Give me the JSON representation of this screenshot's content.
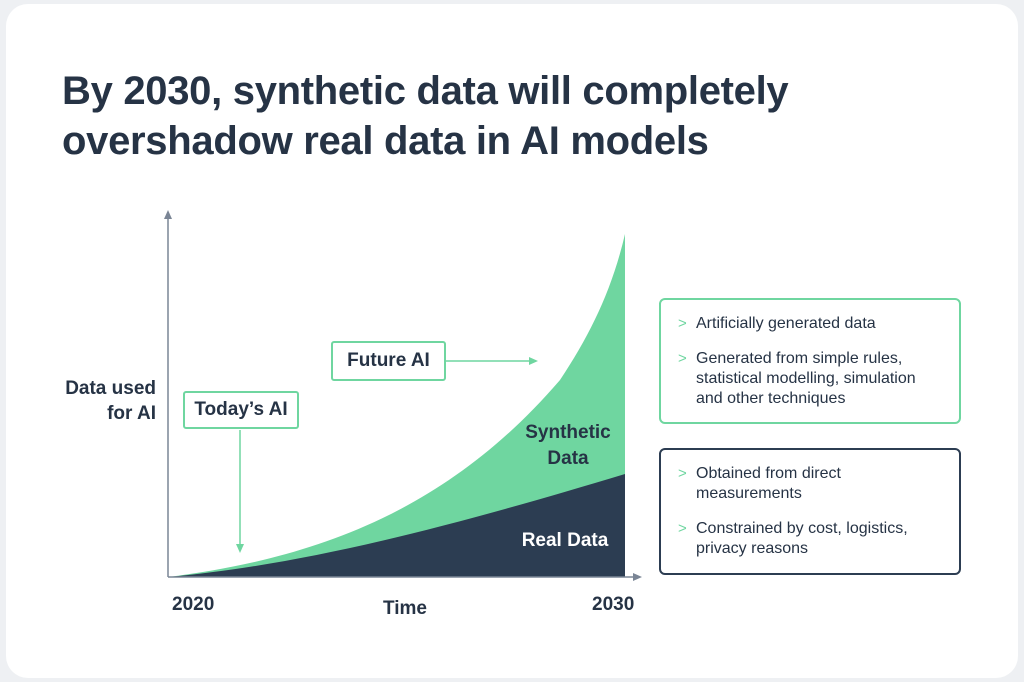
{
  "title": {
    "line1": "By 2030, synthetic data will completely",
    "line2": "overshadow real data in AI models"
  },
  "chart_data": {
    "type": "area",
    "ylabel": [
      "Data used",
      "for AI"
    ],
    "xlabel": "Time",
    "x_ticks": [
      "2020",
      "2030"
    ],
    "series": [
      {
        "name": "Synthetic Data",
        "color": "#6fd6a0"
      },
      {
        "name": "Real Data",
        "color": "#2c3d52"
      }
    ],
    "callouts": {
      "today": "Today’s AI",
      "future": "Future AI"
    }
  },
  "synthetic_box": {
    "items": [
      "Artificially generated data",
      "Generated from simple rules, statistical modelling, simulation and other techniques"
    ]
  },
  "real_box": {
    "items": [
      "Obtained from direct measurements",
      "Constrained by cost, logistics, privacy reasons"
    ]
  },
  "colors": {
    "accent_green": "#6fd6a0",
    "dark_navy": "#2c3d52",
    "axis_gray": "#7a8595",
    "text": "#263345"
  }
}
